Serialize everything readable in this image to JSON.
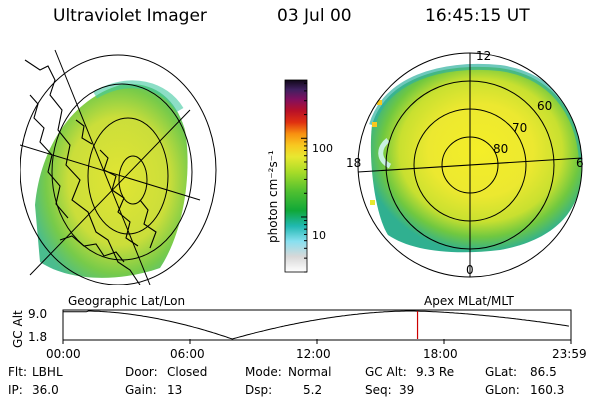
{
  "header": {
    "title": "Ultraviolet Imager",
    "date": "03 Jul 00",
    "time": "16:45:15 UT"
  },
  "colorbar": {
    "unit_label": "photon cm⁻²s⁻¹",
    "ticks": [
      "100",
      "10"
    ],
    "ticks_values": [
      100,
      10
    ],
    "range": [
      2,
      550
    ]
  },
  "polar": {
    "top_label": "12",
    "left_label": "18",
    "right_label": "6",
    "bottom_label": "0",
    "lat_labels": [
      "60",
      "70",
      "80"
    ]
  },
  "map_labels": {
    "geographic": "Geographic Lat/Lon",
    "apex": "Apex MLat/MLT"
  },
  "altitude_plot": {
    "ylabel": "GC Alt",
    "y_ticks": [
      "9.0",
      "1.8"
    ],
    "x_ticks": [
      "00:00",
      "06:00",
      "12:00",
      "18:00",
      "23:59"
    ],
    "current_time_hours": 16.75,
    "perigee_hours": [
      8.0
    ],
    "apogee_hours": [
      1.1,
      16.4
    ]
  },
  "info": {
    "flt_label": "Flt:",
    "flt_value": "LBHL",
    "ip_label": "IP:",
    "ip_value": "36.0",
    "door_label": "Door:",
    "door_value": "Closed",
    "gain_label": "Gain:",
    "gain_value": "13",
    "mode_label": "Mode:",
    "mode_value": "Normal",
    "dsp_label": "Dsp:",
    "dsp_value": "5.2",
    "gcalt_label": "GC Alt:",
    "gcalt_value": "9.3 Re",
    "seq_label": "Seq:",
    "seq_value": "39",
    "glat_label": "GLat:",
    "glat_value": "86.5",
    "glon_label": "GLon:",
    "glon_value": "160.3"
  },
  "colors": {
    "time_marker": "#cc0000",
    "line": "#000000"
  }
}
